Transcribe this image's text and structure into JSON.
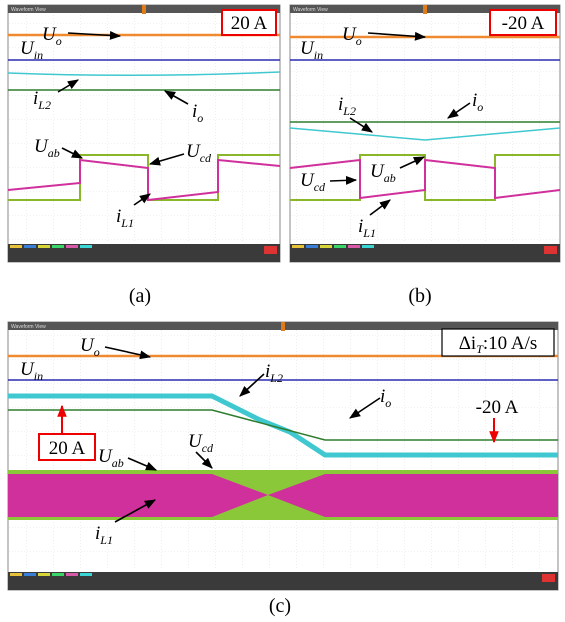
{
  "panels": [
    {
      "caption": "(a)",
      "header": "Waveform View",
      "badge": "20 A",
      "labels": [
        {
          "main": "U",
          "sub": "o"
        },
        {
          "main": "U",
          "sub": "in"
        },
        {
          "main": "i",
          "sub": "L2"
        },
        {
          "main": "i",
          "sub": "o"
        },
        {
          "main": "U",
          "sub": "ab"
        },
        {
          "main": "U",
          "sub": "cd"
        },
        {
          "main": "i",
          "sub": "L1"
        }
      ]
    },
    {
      "caption": "(b)",
      "header": "Waveform View",
      "badge": "-20 A",
      "labels": [
        {
          "main": "U",
          "sub": "o"
        },
        {
          "main": "U",
          "sub": "in"
        },
        {
          "main": "i",
          "sub": "L2"
        },
        {
          "main": "i",
          "sub": "o"
        },
        {
          "main": "U",
          "sub": "cd"
        },
        {
          "main": "U",
          "sub": "ab"
        },
        {
          "main": "i",
          "sub": "L1"
        }
      ]
    },
    {
      "caption": "(c)",
      "header": "Waveform View",
      "badge": {
        "pre": "Δi",
        "sub": "T",
        "post": ":10 A/s"
      },
      "start_label": "20 A",
      "end_label": "-20 A",
      "labels": [
        {
          "main": "U",
          "sub": "o"
        },
        {
          "main": "U",
          "sub": "in"
        },
        {
          "main": "i",
          "sub": "L2"
        },
        {
          "main": "i",
          "sub": "o"
        },
        {
          "main": "U",
          "sub": "ab"
        },
        {
          "main": "U",
          "sub": "cd"
        },
        {
          "main": "i",
          "sub": "L1"
        }
      ]
    }
  ]
}
